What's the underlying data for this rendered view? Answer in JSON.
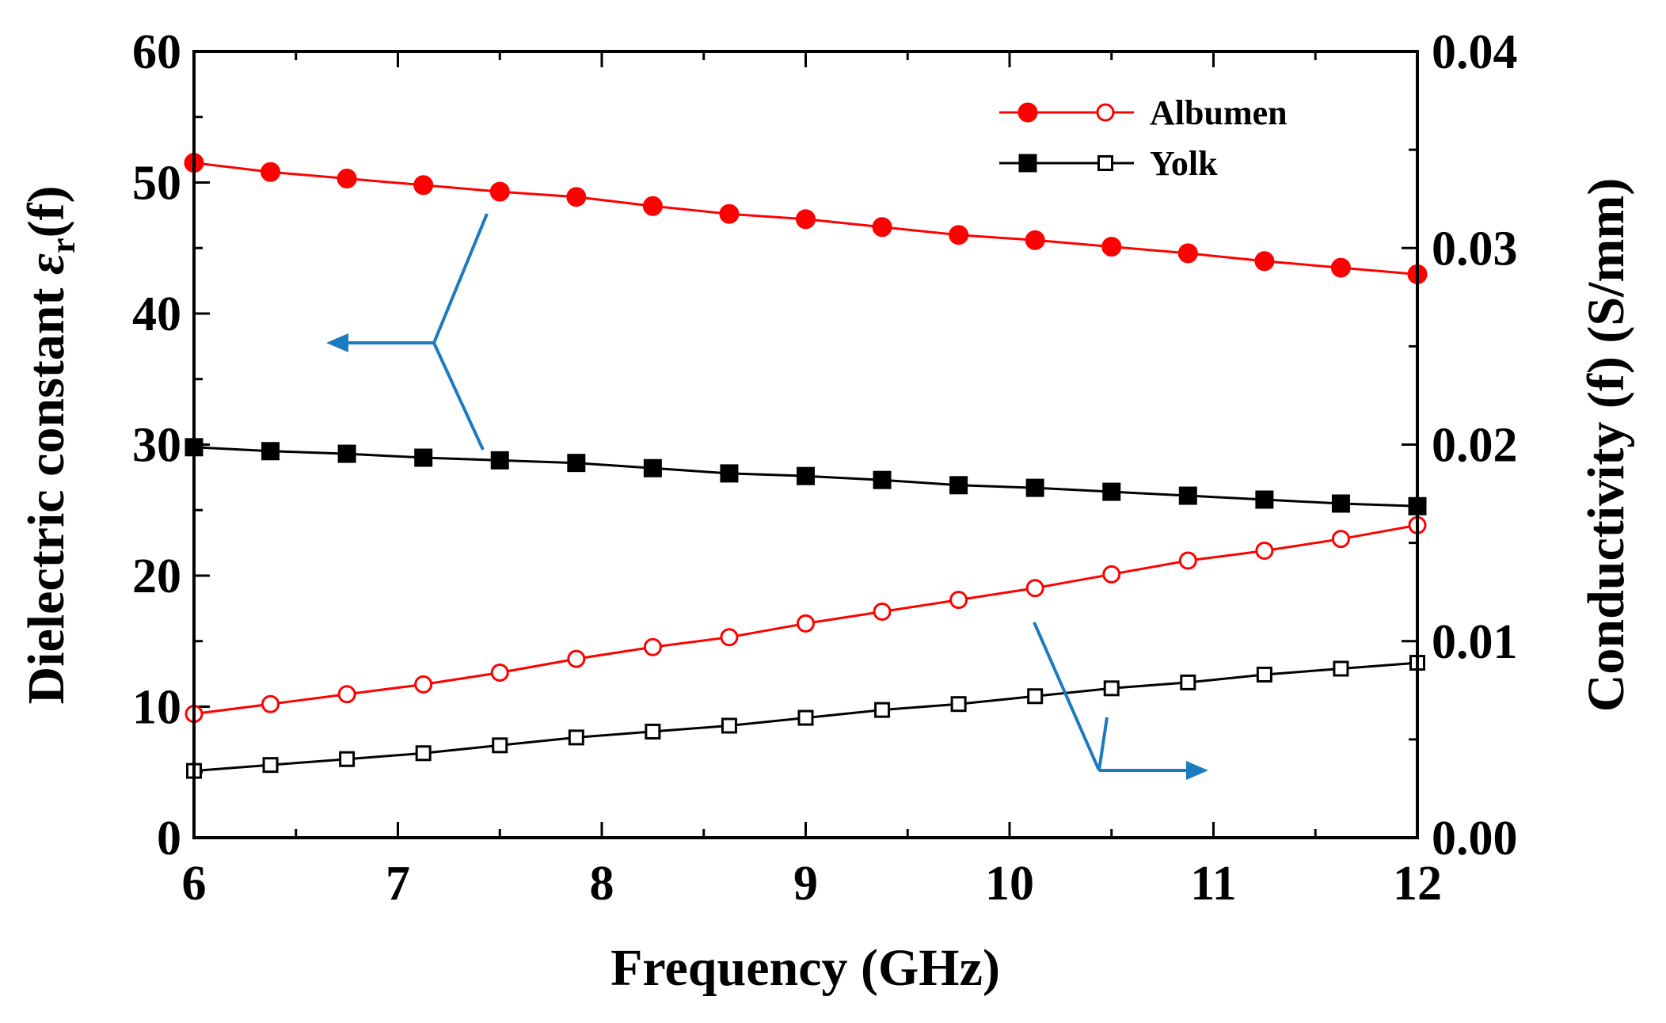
{
  "chart_data": {
    "type": "line",
    "xlabel": "Frequency (GHz)",
    "ylabel_left_prefix": "Dielectric constant ",
    "ylabel_left_symbol": "ε",
    "ylabel_left_subscript": "r",
    "ylabel_left_suffix": "(f)",
    "ylabel_right": "Conductivity (f) (S/mm)",
    "xlim": [
      6,
      12
    ],
    "ylim_left": [
      0,
      60
    ],
    "ylim_right": [
      0,
      0.04
    ],
    "x_ticks": [
      "6",
      "7",
      "8",
      "9",
      "10",
      "11",
      "12"
    ],
    "y_left_ticks": [
      "0",
      "10",
      "20",
      "30",
      "40",
      "50",
      "60"
    ],
    "y_right_ticks": [
      "0.00",
      "0.01",
      "0.02",
      "0.03",
      "0.04"
    ],
    "x": [
      6.0,
      6.375,
      6.75,
      7.125,
      7.5,
      7.875,
      8.25,
      8.625,
      9.0,
      9.375,
      9.75,
      10.125,
      10.5,
      10.875,
      11.25,
      11.625,
      12.0
    ],
    "series": [
      {
        "axis": "left",
        "marker": "circle-filled",
        "color": "#ff0000",
        "values": [
          51.5,
          50.8,
          50.3,
          49.8,
          49.3,
          48.9,
          48.2,
          47.6,
          47.2,
          46.6,
          46.0,
          45.6,
          45.1,
          44.6,
          44.0,
          43.5,
          43.0
        ]
      },
      {
        "axis": "left",
        "marker": "square-filled",
        "color": "#000000",
        "values": [
          29.8,
          29.5,
          29.3,
          29.0,
          28.8,
          28.6,
          28.2,
          27.8,
          27.6,
          27.3,
          26.9,
          26.7,
          26.4,
          26.1,
          25.8,
          25.5,
          25.3
        ]
      },
      {
        "axis": "right",
        "marker": "circle-open",
        "color": "#ff0000",
        "values": [
          0.0063,
          0.0068,
          0.0073,
          0.0078,
          0.0084,
          0.0091,
          0.0097,
          0.0102,
          0.0109,
          0.0115,
          0.0121,
          0.0127,
          0.0134,
          0.0141,
          0.0146,
          0.0152,
          0.0159
        ]
      },
      {
        "axis": "right",
        "marker": "square-open",
        "color": "#000000",
        "values": [
          0.0034,
          0.0037,
          0.004,
          0.0043,
          0.0047,
          0.0051,
          0.0054,
          0.0057,
          0.0061,
          0.0065,
          0.0068,
          0.0072,
          0.0076,
          0.0079,
          0.0083,
          0.0086,
          0.0089
        ]
      }
    ],
    "legend": {
      "placement": "top-right",
      "entries": [
        {
          "label": "Albumen",
          "color": "#ff0000",
          "markers": [
            "circle-filled",
            "circle-open"
          ]
        },
        {
          "label": "Yolk",
          "color": "#000000",
          "markers": [
            "square-filled",
            "square-open"
          ]
        }
      ]
    },
    "annotation_color": "#1a7bbf",
    "grid": false
  }
}
